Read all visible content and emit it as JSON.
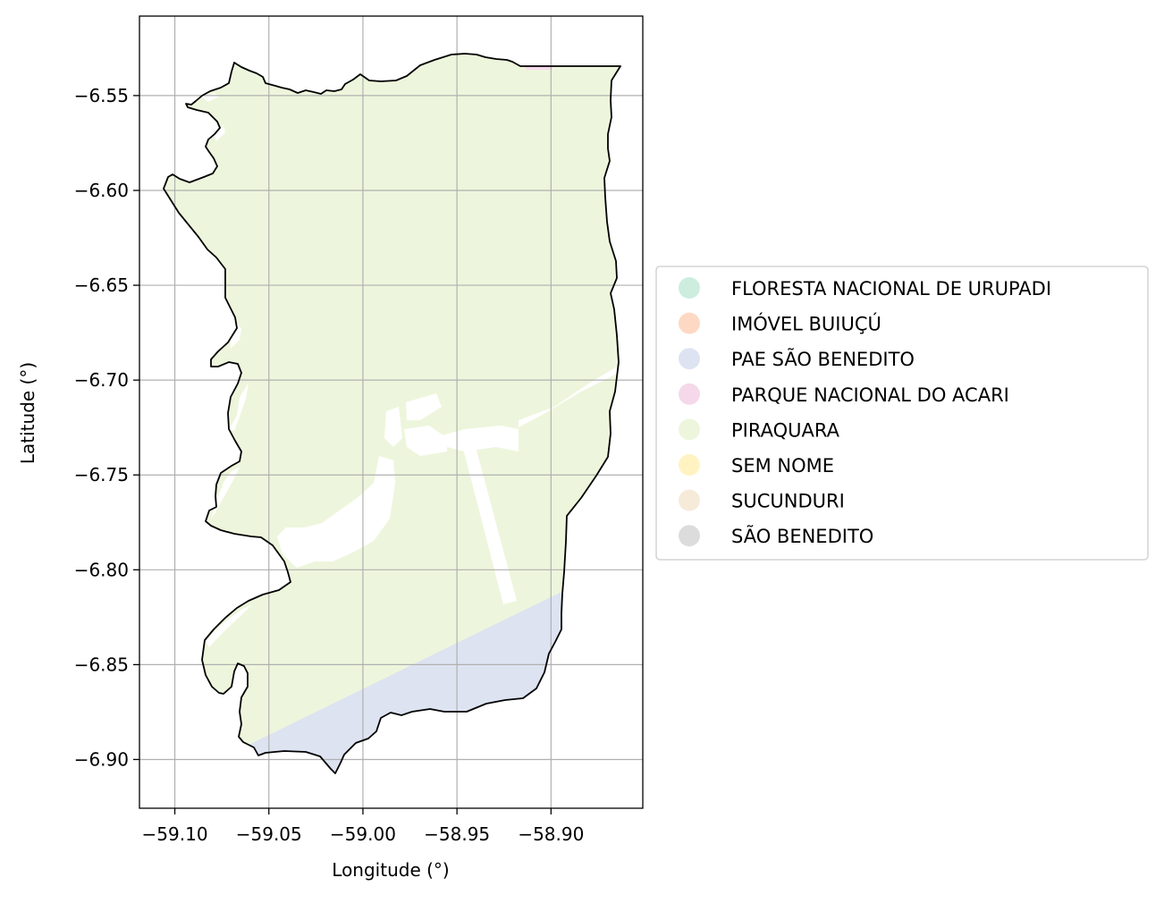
{
  "axes": {
    "xlabel": "Longitude (°)",
    "ylabel": "Latitude (°)",
    "xlim": [
      -59.1188,
      -58.8512
    ],
    "ylim": [
      -6.9257,
      -6.5081
    ],
    "xticks": [
      {
        "value": -59.1,
        "label": "−59.10"
      },
      {
        "value": -59.05,
        "label": "−59.05"
      },
      {
        "value": -59.0,
        "label": "−59.00"
      },
      {
        "value": -58.95,
        "label": "−58.95"
      },
      {
        "value": -58.9,
        "label": "−58.90"
      }
    ],
    "yticks": [
      {
        "value": -6.55,
        "label": "−6.55"
      },
      {
        "value": -6.6,
        "label": "−6.60"
      },
      {
        "value": -6.65,
        "label": "−6.65"
      },
      {
        "value": -6.7,
        "label": "−6.70"
      },
      {
        "value": -6.75,
        "label": "−6.75"
      },
      {
        "value": -6.8,
        "label": "−6.80"
      },
      {
        "value": -6.85,
        "label": "−6.85"
      },
      {
        "value": -6.9,
        "label": "−6.90"
      }
    ],
    "grid": true
  },
  "legend": {
    "placement": "center-left outside axes",
    "items": [
      {
        "label": "FLORESTA NACIONAL DE URUPADI",
        "color": "#cdeede"
      },
      {
        "label": "IMÓVEL BUIUÇÚ",
        "color": "#fdd9c4"
      },
      {
        "label": "PAE SÃO BENEDITO",
        "color": "#dde3f1"
      },
      {
        "label": "PARQUE NACIONAL DO ACARI",
        "color": "#f5d8ea"
      },
      {
        "label": "PIRAQUARA",
        "color": "#edf6dc"
      },
      {
        "label": "SEM NOME",
        "color": "#fff3c2"
      },
      {
        "label": "SUCUNDURI",
        "color": "#f6ead9"
      },
      {
        "label": "SÃO BENEDITO",
        "color": "#dcdcdc"
      }
    ]
  },
  "colors": {
    "boundary": "#000000",
    "grid": "#b0b0b0",
    "piraquara": "#edf6dc",
    "pae_sao_benedito": "#dde3f1",
    "parque_acari": "#f5d8ea",
    "gap": "#ffffff"
  }
}
